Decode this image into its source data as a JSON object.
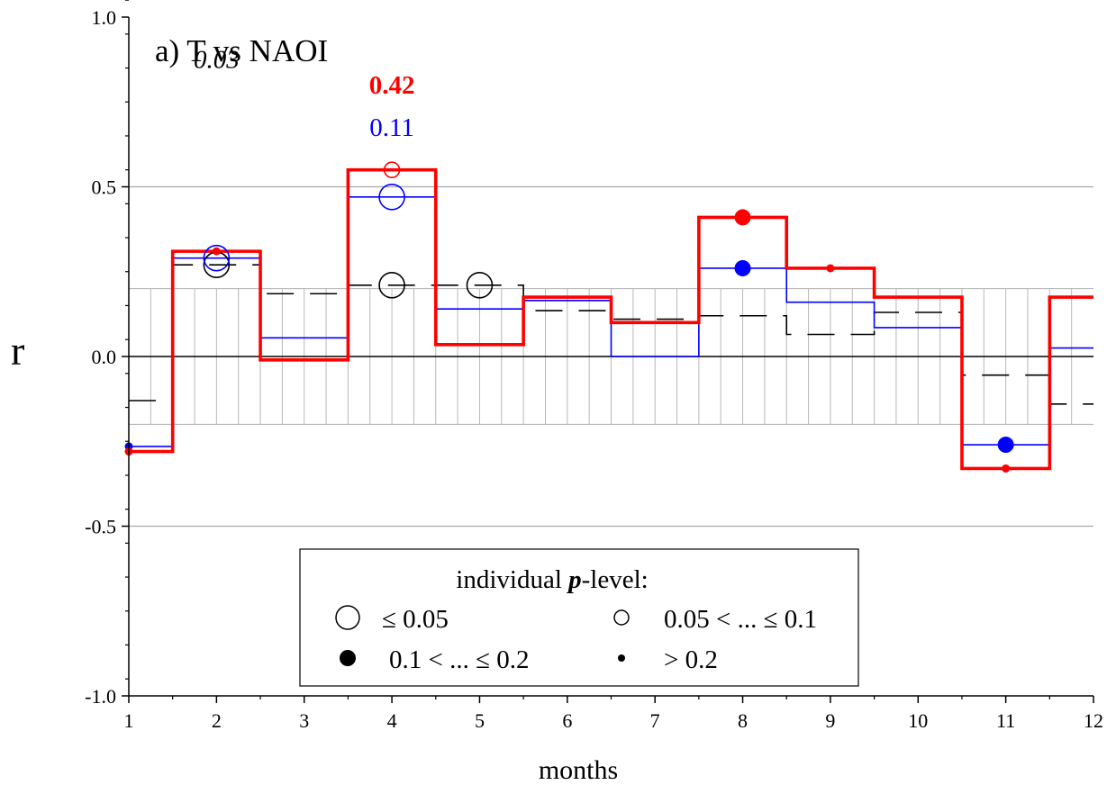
{
  "chart_data": {
    "type": "line",
    "title": "a) T vs NAOI",
    "xlabel": "months",
    "ylabel": "r",
    "xlim": [
      1,
      12
    ],
    "ylim": [
      -1.0,
      1.0
    ],
    "x_ticks": [
      1,
      2,
      3,
      4,
      5,
      6,
      7,
      8,
      9,
      10,
      11,
      12
    ],
    "y_ticks": [
      {
        "value": 1.0,
        "label": "1.0"
      },
      {
        "value": 0.5,
        "label": "0.5"
      },
      {
        "value": 0.0,
        "label": "0.0"
      },
      {
        "value": -0.5,
        "label": "-0.5"
      },
      {
        "value": -1.0,
        "label": "-1.0"
      }
    ],
    "gridlines_y": [
      0.5,
      -0.5
    ],
    "significance_band": [
      -0.2,
      0.2
    ],
    "x": [
      1,
      2,
      3,
      4,
      5,
      6,
      7,
      8,
      9,
      10,
      11,
      12
    ],
    "series": [
      {
        "style": "step-dashed",
        "color": "#000000",
        "values": [
          -0.13,
          0.27,
          0.185,
          0.21,
          0.21,
          0.135,
          0.11,
          0.12,
          0.065,
          0.13,
          -0.055,
          -0.14
        ],
        "markers": [
          {
            "x": 2,
            "y": 0.27,
            "p_class": "le_0.05"
          },
          {
            "x": 4,
            "y": 0.21,
            "p_class": "le_0.05"
          },
          {
            "x": 5,
            "y": 0.21,
            "p_class": "le_0.05"
          }
        ]
      },
      {
        "style": "step-thin",
        "color": "#0000ff",
        "values": [
          -0.265,
          0.29,
          0.055,
          0.47,
          0.14,
          0.165,
          0.0,
          0.26,
          0.16,
          0.085,
          -0.26,
          0.025
        ],
        "markers": [
          {
            "x": 1,
            "y": -0.265,
            "p_class": "gt_0.2"
          },
          {
            "x": 2,
            "y": 0.29,
            "p_class": "le_0.05"
          },
          {
            "x": 4,
            "y": 0.47,
            "p_class": "le_0.05"
          },
          {
            "x": 8,
            "y": 0.26,
            "p_class": "0.1_to_0.2"
          },
          {
            "x": 11,
            "y": -0.26,
            "p_class": "0.1_to_0.2"
          }
        ]
      },
      {
        "style": "step-thick",
        "color": "#ff0000",
        "values": [
          -0.28,
          0.31,
          -0.01,
          0.55,
          0.035,
          0.175,
          0.1,
          0.41,
          0.26,
          0.175,
          -0.33,
          0.175
        ],
        "markers": [
          {
            "x": 1,
            "y": -0.28,
            "p_class": "gt_0.2"
          },
          {
            "x": 2,
            "y": 0.31,
            "p_class": "gt_0.2"
          },
          {
            "x": 4,
            "y": 0.55,
            "p_class": "0.05_to_0.1"
          },
          {
            "x": 8,
            "y": 0.41,
            "p_class": "0.1_to_0.2"
          },
          {
            "x": 9,
            "y": 0.26,
            "p_class": "gt_0.2"
          },
          {
            "x": 11,
            "y": -0.33,
            "p_class": "gt_0.2"
          }
        ]
      }
    ],
    "annotations": [
      {
        "text": "0.03",
        "x": 2,
        "y": 0.85,
        "color": "#000000",
        "style": "italic"
      },
      {
        "text": "0.42",
        "x": 4,
        "y": 0.775,
        "color": "#ff0000",
        "style": "bold"
      },
      {
        "text": "0.11",
        "x": 4,
        "y": 0.65,
        "color": "#0000ff",
        "style": "normal"
      }
    ],
    "legend": {
      "title_prefix": "individual ",
      "title_symbol": "p",
      "title_suffix": "-level:",
      "placement": "bottom-center",
      "entries": [
        {
          "p_class": "le_0.05",
          "label": "≤ 0.05"
        },
        {
          "p_class": "0.05_to_0.1",
          "label": "0.05 < ... ≤ 0.1"
        },
        {
          "p_class": "0.1_to_0.2",
          "label": "0.1 < ... ≤ 0.2"
        },
        {
          "p_class": "gt_0.2",
          "label": "> 0.2"
        }
      ]
    }
  }
}
